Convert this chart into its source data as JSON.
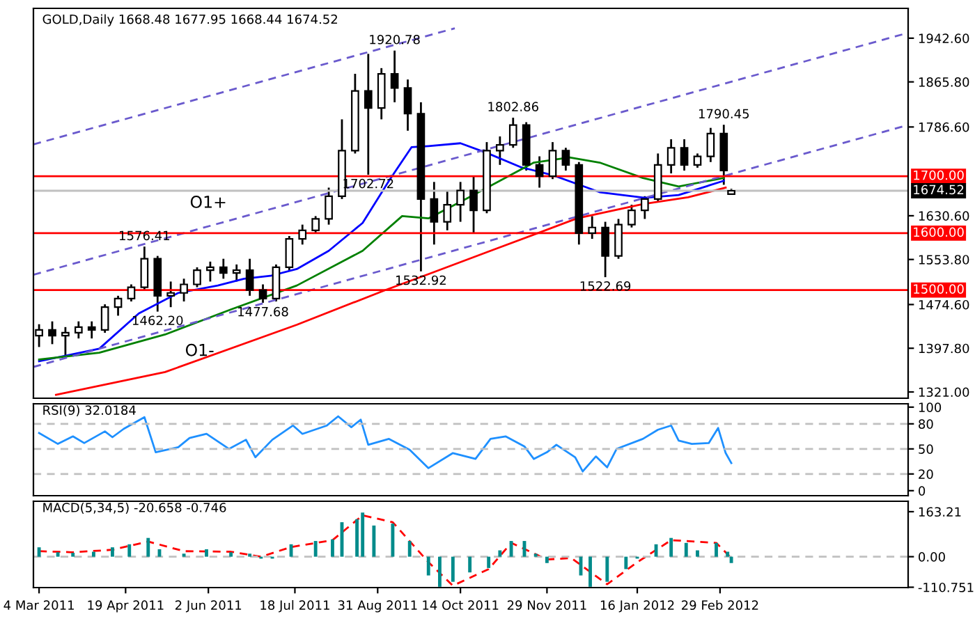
{
  "chart_data": [
    {
      "type": "candlestick",
      "title": "GOLD,Daily 1668.48 1677.95 1668.44 1674.52",
      "tick_labels": "y",
      "xlim": [
        "2011-03-01",
        "2012-06-08"
      ],
      "ylim": [
        1310,
        1995
      ],
      "yticks": [
        {
          "value": 1942.6,
          "label": "1942.60"
        },
        {
          "value": 1865.8,
          "label": "1865.80"
        },
        {
          "value": 1786.6,
          "label": "1786.60"
        },
        {
          "value": 1630.6,
          "label": "1630.60"
        },
        {
          "value": 1553.8,
          "label": "1553.80"
        },
        {
          "value": 1474.6,
          "label": "1474.60"
        },
        {
          "value": 1397.8,
          "label": "1397.80"
        },
        {
          "value": 1321,
          "label": "1321.00"
        }
      ],
      "x": [
        "2011-03-04",
        "2011-03-11",
        "2011-03-18",
        "2011-03-25",
        "2011-04-01",
        "2011-04-08",
        "2011-04-15",
        "2011-04-22",
        "2011-04-29",
        "2011-05-06",
        "2011-05-13",
        "2011-05-20",
        "2011-05-27",
        "2011-06-03",
        "2011-06-10",
        "2011-06-17",
        "2011-06-24",
        "2011-07-01",
        "2011-07-08",
        "2011-07-15",
        "2011-07-22",
        "2011-07-29",
        "2011-08-05",
        "2011-08-12",
        "2011-08-19",
        "2011-08-26",
        "2011-09-02",
        "2011-09-09",
        "2011-09-16",
        "2011-09-23",
        "2011-09-30",
        "2011-10-07",
        "2011-10-14",
        "2011-10-21",
        "2011-10-28",
        "2011-11-04",
        "2011-11-11",
        "2011-11-18",
        "2011-11-25",
        "2011-12-02",
        "2011-12-09",
        "2011-12-16",
        "2011-12-23",
        "2011-12-30",
        "2012-01-06",
        "2012-01-13",
        "2012-01-20",
        "2012-01-27",
        "2012-02-03",
        "2012-02-10",
        "2012-02-17",
        "2012-02-24",
        "2012-03-02",
        "2012-03-06"
      ],
      "ohlc": [
        [
          1420,
          1440,
          1400,
          1430
        ],
        [
          1430,
          1445,
          1405,
          1420
        ],
        [
          1420,
          1435,
          1385,
          1425
        ],
        [
          1425,
          1445,
          1415,
          1435
        ],
        [
          1435,
          1445,
          1415,
          1430
        ],
        [
          1430,
          1475,
          1425,
          1470
        ],
        [
          1470,
          1490,
          1455,
          1485
        ],
        [
          1485,
          1510,
          1480,
          1505
        ],
        [
          1505,
          1576.41,
          1500,
          1555
        ],
        [
          1555,
          1560,
          1462.2,
          1490
        ],
        [
          1490,
          1515,
          1470,
          1495
        ],
        [
          1495,
          1520,
          1480,
          1510
        ],
        [
          1510,
          1540,
          1505,
          1535
        ],
        [
          1535,
          1550,
          1515,
          1540
        ],
        [
          1540,
          1555,
          1520,
          1530
        ],
        [
          1530,
          1545,
          1515,
          1535
        ],
        [
          1535,
          1555,
          1490,
          1500
        ],
        [
          1500,
          1510,
          1477.68,
          1485
        ],
        [
          1485,
          1545,
          1480,
          1540
        ],
        [
          1540,
          1595,
          1535,
          1590
        ],
        [
          1590,
          1615,
          1580,
          1605
        ],
        [
          1605,
          1630,
          1600,
          1625
        ],
        [
          1625,
          1680,
          1615,
          1665
        ],
        [
          1665,
          1800,
          1660,
          1745
        ],
        [
          1745,
          1880,
          1740,
          1850
        ],
        [
          1850,
          1915,
          1702.72,
          1820
        ],
        [
          1820,
          1890,
          1800,
          1880
        ],
        [
          1880,
          1920.78,
          1830,
          1855
        ],
        [
          1855,
          1870,
          1780,
          1810
        ],
        [
          1810,
          1830,
          1532.92,
          1660
        ],
        [
          1660,
          1690,
          1580,
          1620
        ],
        [
          1620,
          1675,
          1605,
          1650
        ],
        [
          1650,
          1690,
          1620,
          1675
        ],
        [
          1675,
          1700,
          1600,
          1640
        ],
        [
          1640,
          1760,
          1635,
          1745
        ],
        [
          1745,
          1770,
          1720,
          1755
        ],
        [
          1755,
          1802.86,
          1750,
          1790
        ],
        [
          1790,
          1795,
          1710,
          1720
        ],
        [
          1720,
          1735,
          1680,
          1700
        ],
        [
          1700,
          1760,
          1695,
          1745
        ],
        [
          1745,
          1750,
          1710,
          1720
        ],
        [
          1720,
          1725,
          1580,
          1600
        ],
        [
          1600,
          1630,
          1590,
          1610
        ],
        [
          1610,
          1620,
          1522.69,
          1560
        ],
        [
          1560,
          1625,
          1555,
          1615
        ],
        [
          1615,
          1650,
          1610,
          1640
        ],
        [
          1640,
          1665,
          1625,
          1660
        ],
        [
          1660,
          1740,
          1655,
          1720
        ],
        [
          1720,
          1765,
          1705,
          1750
        ],
        [
          1750,
          1765,
          1710,
          1720
        ],
        [
          1720,
          1740,
          1715,
          1735
        ],
        [
          1735,
          1785,
          1725,
          1775
        ],
        [
          1775,
          1790.45,
          1685,
          1710
        ],
        [
          1668.48,
          1677.95,
          1668.44,
          1674.52
        ]
      ],
      "series": [
        {
          "type": "line",
          "color": "#0000ff",
          "x": [
            "2011-03-04",
            "2011-04-05",
            "2011-04-26",
            "2011-05-17",
            "2011-06-07",
            "2011-06-21",
            "2011-07-05",
            "2011-07-19",
            "2011-08-05",
            "2011-08-23",
            "2011-09-06",
            "2011-09-18",
            "2011-09-27",
            "2011-10-14",
            "2011-10-28",
            "2011-11-15",
            "2011-12-02",
            "2011-12-27",
            "2012-01-20",
            "2012-02-07",
            "2012-03-02"
          ],
          "values": [
            1375,
            1397,
            1459,
            1495,
            1508,
            1520,
            1525,
            1537,
            1569,
            1618,
            1692,
            1751,
            1753,
            1758,
            1741,
            1716,
            1702,
            1672,
            1662,
            1667,
            1692
          ]
        },
        {
          "type": "line",
          "color": "#008000",
          "x": [
            "2011-03-04",
            "2011-04-05",
            "2011-05-10",
            "2011-06-14",
            "2011-07-19",
            "2011-08-23",
            "2011-09-13",
            "2011-09-27",
            "2011-10-18",
            "2011-11-22",
            "2011-12-11",
            "2011-12-27",
            "2012-01-19",
            "2012-02-07",
            "2012-03-02"
          ],
          "values": [
            1378,
            1390,
            1422,
            1466,
            1508,
            1569,
            1630,
            1626,
            1662,
            1724,
            1733,
            1724,
            1697,
            1682,
            1697
          ]
        },
        {
          "type": "line",
          "color": "#ff0000",
          "x": [
            "2011-03-13",
            "2011-05-10",
            "2011-07-19",
            "2011-09-04",
            "2011-09-27",
            "2011-10-30",
            "2011-12-15",
            "2012-01-19",
            "2012-02-12",
            "2012-03-03"
          ],
          "values": [
            1316,
            1356,
            1439,
            1500,
            1528,
            1569,
            1626,
            1651,
            1663,
            1680
          ]
        },
        {
          "type": "line",
          "color": "#6a5acd",
          "line_style": "dashed",
          "x": [
            "2011-03-01",
            "2011-10-11"
          ],
          "values": [
            1756,
            1960
          ]
        },
        {
          "type": "line",
          "color": "#6a5acd",
          "line_style": "dashed",
          "x": [
            "2011-03-01",
            "2012-06-08"
          ],
          "values": [
            1527,
            1952
          ]
        },
        {
          "type": "line",
          "color": "#6a5acd",
          "line_style": "dashed",
          "x": [
            "2011-03-01",
            "2012-06-08"
          ],
          "values": [
            1365,
            1790
          ]
        }
      ],
      "ref_lines": [
        {
          "axis": "y",
          "value": 1700,
          "label": "1700.00",
          "color": "#ff0000"
        },
        {
          "axis": "y",
          "value": 1674.52,
          "label": "1674.52",
          "color": "#c0c0c0"
        },
        {
          "axis": "y",
          "value": 1600,
          "label": "1600.00",
          "color": "#ff0000"
        },
        {
          "axis": "y",
          "value": 1500,
          "label": "1500.00",
          "color": "#ff0000"
        }
      ],
      "annotations": [
        {
          "text": "1920.78",
          "x": "2011-09-09",
          "y": 1920.78
        },
        {
          "text": "1802.86",
          "x": "2011-11-11",
          "y": 1802.86
        },
        {
          "text": "1790.45",
          "x": "2012-03-02",
          "y": 1790.45
        },
        {
          "text": "1702.72",
          "x": "2011-08-26",
          "y": 1702.72
        },
        {
          "text": "1576.41",
          "x": "2011-04-29",
          "y": 1576.41
        },
        {
          "text": "1462.20",
          "x": "2011-05-06",
          "y": 1462.2
        },
        {
          "text": "1477.68",
          "x": "2011-07-01",
          "y": 1477.68
        },
        {
          "text": "1532.92",
          "x": "2011-09-23",
          "y": 1532.92
        },
        {
          "text": "1522.69",
          "x": "2011-12-30",
          "y": 1522.69
        },
        "O1+",
        "O1-"
      ]
    },
    {
      "type": "line",
      "title": "RSI(9) 32.0184",
      "tick_labels": "y",
      "xlim": [
        "2011-03-01",
        "2012-06-08"
      ],
      "ylim": [
        -6,
        104
      ],
      "yticks": [
        0,
        20,
        50,
        80,
        100
      ],
      "x": [
        "2011-03-04",
        "2011-03-14",
        "2011-03-22",
        "2011-03-28",
        "2011-04-08",
        "2011-04-12",
        "2011-04-18",
        "2011-04-29",
        "2011-05-05",
        "2011-05-17",
        "2011-05-23",
        "2011-06-01",
        "2011-06-13",
        "2011-06-22",
        "2011-06-27",
        "2011-07-06",
        "2011-07-17",
        "2011-07-22",
        "2011-08-04",
        "2011-08-10",
        "2011-08-17",
        "2011-08-22",
        "2011-08-26",
        "2011-09-06",
        "2011-09-17",
        "2011-09-27",
        "2011-10-10",
        "2011-10-22",
        "2011-10-30",
        "2011-11-07",
        "2011-11-17",
        "2011-11-22",
        "2011-11-29",
        "2011-12-04",
        "2011-12-14",
        "2011-12-18",
        "2011-12-25",
        "2011-12-31",
        "2012-01-05",
        "2012-01-19",
        "2012-01-27",
        "2012-02-03",
        "2012-02-07",
        "2012-02-14",
        "2012-02-23",
        "2012-02-28",
        "2012-03-03",
        "2012-03-06"
      ],
      "series": [
        {
          "color": "#1e90ff",
          "values": [
            69,
            56,
            65,
            57,
            71,
            64,
            74,
            88,
            46,
            52,
            63,
            68,
            50,
            61,
            40,
            61,
            78,
            68,
            78,
            89,
            76,
            85,
            55,
            62,
            49,
            27,
            45,
            38,
            62,
            65,
            53,
            38,
            46,
            55,
            40,
            23,
            41,
            28,
            50,
            62,
            73,
            78,
            60,
            56,
            57,
            75,
            45,
            33
          ]
        }
      ],
      "ref_lines": [
        {
          "axis": "y",
          "value": 80,
          "color": "#c0c0c0",
          "line_style": "dashed"
        },
        {
          "axis": "y",
          "value": 50,
          "color": "#c0c0c0",
          "line_style": "dashed"
        },
        {
          "axis": "y",
          "value": 20,
          "color": "#c0c0c0",
          "line_style": "dashed"
        }
      ]
    },
    {
      "type": "bar",
      "title": "MACD(5,34,5) -20.658 -0.746",
      "xlim": [
        "2011-03-01",
        "2012-06-08"
      ],
      "ylim": [
        -112,
        201
      ],
      "yticks": [
        163.21,
        {
          "value": 0,
          "label": "0.00"
        },
        -110.751
      ],
      "xticks": [
        {
          "value": "2011-03-04",
          "label": "4 Mar 2011"
        },
        {
          "value": "2011-04-19",
          "label": "19 Apr 2011"
        },
        {
          "value": "2011-06-02",
          "label": "2 Jun 2011"
        },
        {
          "value": "2011-07-18",
          "label": "18 Jul 2011"
        },
        {
          "value": "2011-08-31",
          "label": "31 Aug 2011"
        },
        {
          "value": "2011-10-14",
          "label": "14 Oct 2011"
        },
        {
          "value": "2011-11-29",
          "label": "29 Nov 2011"
        },
        {
          "value": "2012-01-16",
          "label": "16 Jan 2012"
        },
        {
          "value": "2012-02-29",
          "label": "29 Feb 2012"
        }
      ],
      "x": [
        "2011-03-04",
        "2011-03-14",
        "2011-03-22",
        "2011-04-02",
        "2011-04-12",
        "2011-04-21",
        "2011-05-01",
        "2011-05-07",
        "2011-05-20",
        "2011-06-01",
        "2011-06-14",
        "2011-06-24",
        "2011-06-30",
        "2011-07-06",
        "2011-07-16",
        "2011-07-29",
        "2011-08-07",
        "2011-08-12",
        "2011-08-20",
        "2011-08-23",
        "2011-08-29",
        "2011-09-08",
        "2011-09-17",
        "2011-09-27",
        "2011-10-03",
        "2011-10-10",
        "2011-10-19",
        "2011-10-29",
        "2011-11-04",
        "2011-11-10",
        "2011-11-17",
        "2011-11-23",
        "2011-11-29",
        "2011-12-06",
        "2011-12-12",
        "2011-12-17",
        "2011-12-22",
        "2011-12-31",
        "2012-01-10",
        "2012-01-16",
        "2012-01-26",
        "2012-02-03",
        "2012-02-11",
        "2012-02-17",
        "2012-02-27",
        "2012-03-04",
        "2012-03-06"
      ],
      "series": [
        {
          "type": "bar",
          "color": "#008b8b",
          "values": [
            34,
            16,
            14,
            18,
            34,
            45,
            68,
            27,
            11,
            27,
            16,
            11,
            -7,
            -7,
            45,
            57,
            63,
            125,
            136,
            160,
            113,
            120,
            57,
            -68,
            -109,
            -91,
            -57,
            -41,
            23,
            57,
            57,
            11,
            -23,
            0,
            0,
            -68,
            -109,
            -91,
            -45,
            -7,
            45,
            68,
            50,
            23,
            50,
            18,
            -23
          ]
        },
        {
          "type": "line",
          "color": "#ff0000",
          "line_style": "dashed",
          "x": [
            "2011-03-04",
            "2011-03-22",
            "2011-04-12",
            "2011-05-01",
            "2011-05-20",
            "2011-06-14",
            "2011-06-30",
            "2011-07-16",
            "2011-08-07",
            "2011-08-23",
            "2011-09-08",
            "2011-09-27",
            "2011-10-10",
            "2011-10-29",
            "2011-11-10",
            "2011-11-29",
            "2011-12-12",
            "2011-12-31",
            "2012-01-16",
            "2012-02-03",
            "2012-02-27",
            "2012-03-06"
          ],
          "values": [
            20,
            16,
            25,
            55,
            20,
            18,
            0,
            35,
            60,
            150,
            125,
            -20,
            -105,
            -45,
            50,
            -10,
            -5,
            -100,
            -20,
            60,
            50,
            -5
          ]
        }
      ],
      "ref_lines": [
        {
          "axis": "y",
          "value": 0,
          "color": "#c0c0c0",
          "line_style": "dashed"
        }
      ]
    }
  ]
}
